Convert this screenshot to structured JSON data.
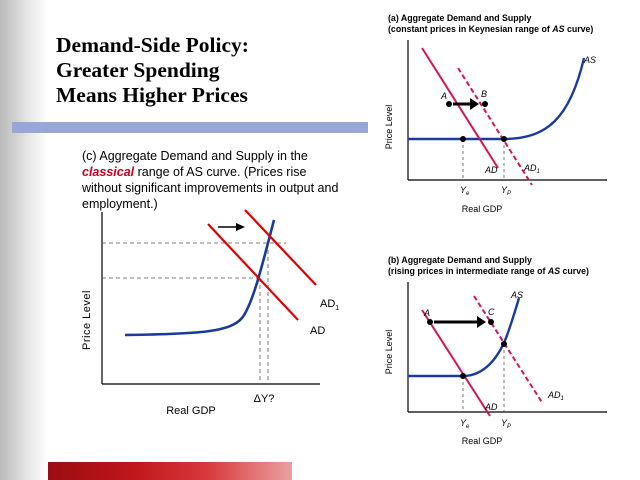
{
  "title": {
    "line1": "Demand-Side Policy:",
    "line2": "Greater Spending",
    "line3": "Means Higher Prices"
  },
  "caption": {
    "part1": "(c) Aggregate Demand and Supply in the ",
    "highlight": "classical",
    "part2": " range of AS curve. (Prices rise without significant improvements in output and employment.)"
  },
  "panel_c": {
    "ylabel": "Price Level",
    "xlabel": "Real GDP",
    "ad_label": "AD",
    "ad1_label": "AD",
    "ad1_sub": "1",
    "dy_label": "ΔY?"
  },
  "panel_a": {
    "title_line1": "(a) Aggregate Demand and Supply",
    "title_line2_pre": "(constant prices in Keynesian range of ",
    "title_line2_as": "AS",
    "title_line2_post": " curve)",
    "as_label": "AS",
    "ylabel": "Price Level",
    "xlabel": "Real GDP",
    "point_a": "A",
    "point_b": "B",
    "ad_label": "AD",
    "ad1_label": "AD",
    "ad1_sub": "1",
    "ye_label": "Y",
    "ye_sub": "e",
    "yp_label": "Y",
    "yp_sub": "P"
  },
  "panel_b": {
    "title_line1": "(b) Aggregate Demand and Supply",
    "title_line2_pre": "(rising prices in intermediate range of ",
    "title_line2_as": "AS",
    "title_line2_post": " curve)",
    "as_label": "AS",
    "ylabel": "Price Level",
    "xlabel": "Real GDP",
    "point_a": "A",
    "point_c": "C",
    "ad_label": "AD",
    "ad1_label": "AD",
    "ad1_sub": "1",
    "ye_label": "Y",
    "ye_sub": "e",
    "yp_label": "Y",
    "yp_sub": "P"
  },
  "colors": {
    "ad_pink": "#d4145a",
    "ad_red": "#e00000",
    "as_blue": "#1a3a9e",
    "axis": "#000000"
  }
}
